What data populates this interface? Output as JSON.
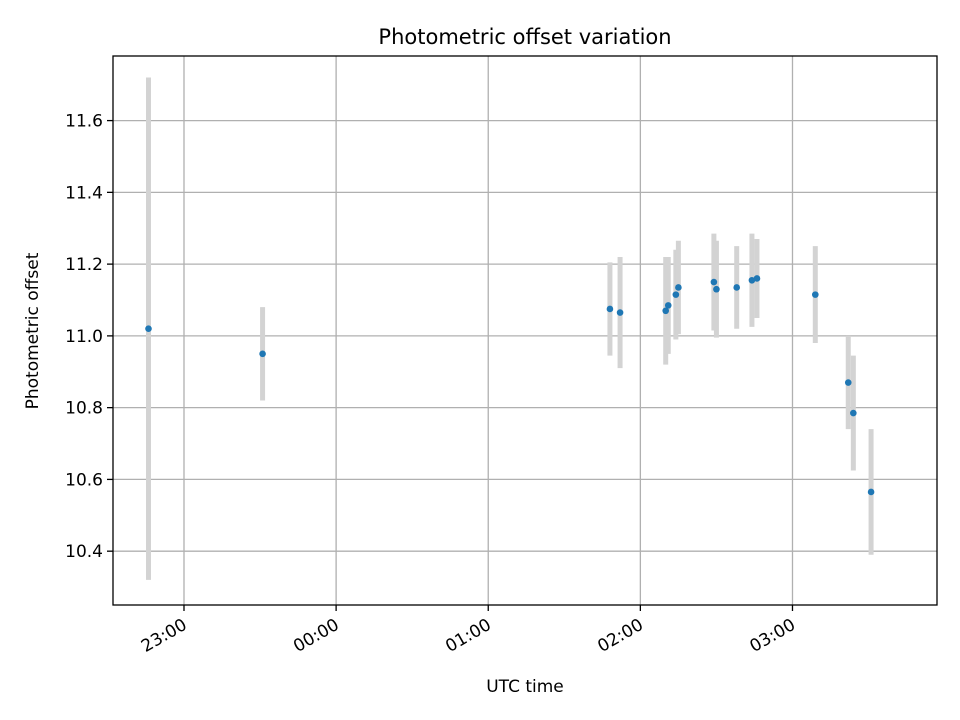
{
  "chart_data": {
    "type": "scatter",
    "title": "Photometric offset variation",
    "xlabel": "UTC time",
    "ylabel": "Photometric offset",
    "x_axis_kind": "time",
    "xlim": [
      "22:32",
      "03:57"
    ],
    "xticks": [
      "23:00",
      "00:00",
      "01:00",
      "02:00",
      "03:00"
    ],
    "ylim": [
      10.25,
      11.78
    ],
    "yticks": [
      "10.4",
      "10.6",
      "10.8",
      "11.0",
      "11.2",
      "11.4",
      "11.6"
    ],
    "grid": true,
    "colors": {
      "point": "#1f77b4",
      "errorbar": "#d3d3d3",
      "grid": "#b0b0b0"
    },
    "series": [
      {
        "points": [
          {
            "x": "22:46",
            "y": 11.02,
            "yerr": 0.7
          },
          {
            "x": "23:31",
            "y": 10.95,
            "yerr": 0.13
          },
          {
            "x": "01:48",
            "y": 11.075,
            "yerr": 0.13
          },
          {
            "x": "01:52",
            "y": 11.065,
            "yerr": 0.155
          },
          {
            "x": "02:10",
            "y": 11.07,
            "yerr": 0.15
          },
          {
            "x": "02:11",
            "y": 11.085,
            "yerr": 0.135
          },
          {
            "x": "02:14",
            "y": 11.115,
            "yerr": 0.125
          },
          {
            "x": "02:15",
            "y": 11.135,
            "yerr": 0.13
          },
          {
            "x": "02:29",
            "y": 11.15,
            "yerr": 0.135
          },
          {
            "x": "02:30",
            "y": 11.13,
            "yerr": 0.135
          },
          {
            "x": "02:38",
            "y": 11.135,
            "yerr": 0.115
          },
          {
            "x": "02:44",
            "y": 11.155,
            "yerr": 0.13
          },
          {
            "x": "02:46",
            "y": 11.16,
            "yerr": 0.11
          },
          {
            "x": "03:09",
            "y": 11.115,
            "yerr": 0.135
          },
          {
            "x": "03:22",
            "y": 10.87,
            "yerr": 0.13
          },
          {
            "x": "03:24",
            "y": 10.785,
            "yerr": 0.16
          },
          {
            "x": "03:31",
            "y": 10.565,
            "yerr": 0.175
          }
        ]
      }
    ]
  }
}
